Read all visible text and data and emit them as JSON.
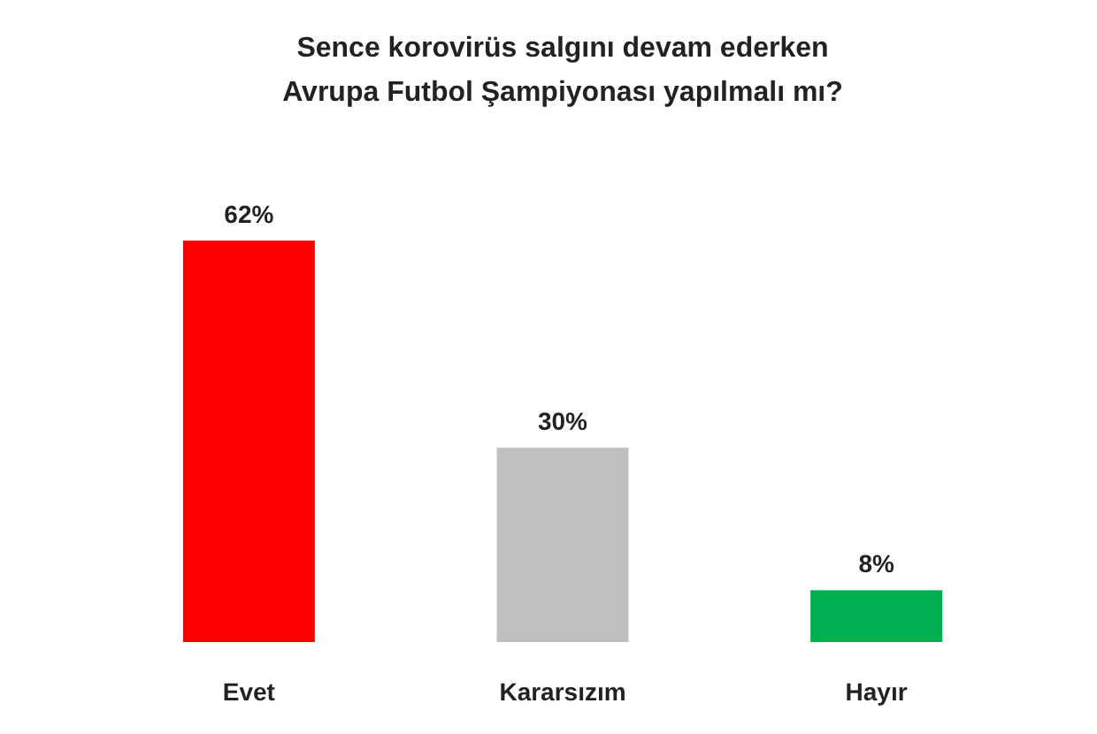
{
  "chart_data": {
    "type": "bar",
    "title": "Sence korovirüs salgını devam ederken\nAvrupa Futbol Şampiyonası yapılmalı mı?",
    "categories": [
      "Evet",
      "Kararsızım",
      "Hayır"
    ],
    "values": [
      62,
      30,
      8
    ],
    "colors": [
      "#ff0000",
      "#bfbfbf",
      "#00b050"
    ],
    "value_labels": [
      "62%",
      "30%",
      "8%"
    ]
  }
}
